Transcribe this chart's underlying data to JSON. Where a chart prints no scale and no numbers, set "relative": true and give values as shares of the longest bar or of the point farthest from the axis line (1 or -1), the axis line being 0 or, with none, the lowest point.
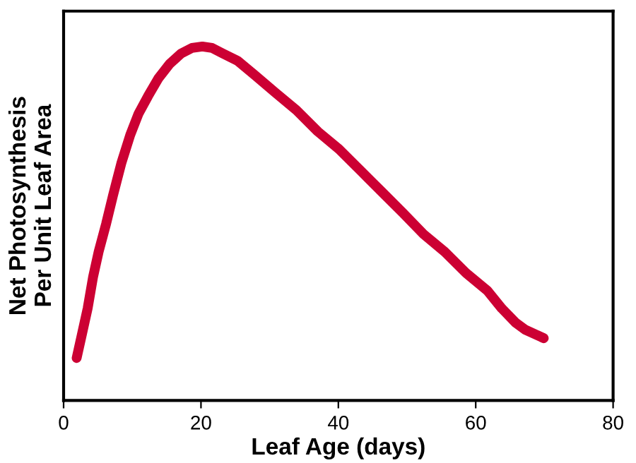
{
  "chart_data": {
    "type": "line",
    "relative": true,
    "xlabel": "Leaf Age (days)",
    "ylabel": "Net Photosynthesis\nPer Unit Leaf Area",
    "xlim": [
      0,
      80
    ],
    "xticks": [
      0,
      20,
      40,
      60,
      80
    ],
    "grid": false,
    "legend": false,
    "marker": "none",
    "line_style": "solid",
    "tick_labels": "x",
    "series": [
      {
        "color": "#cc0033",
        "x": [
          1.9,
          2.7,
          3.5,
          4.3,
          5.1,
          6.2,
          7.2,
          8.4,
          9.7,
          10.9,
          12.3,
          13.8,
          15.4,
          17.1,
          18.7,
          20.2,
          21.6,
          23.2,
          25.3,
          27.8,
          30.8,
          33.9,
          37.0,
          40.1,
          43.2,
          46.3,
          49.4,
          52.4,
          55.5,
          58.6,
          61.7,
          63.8,
          65.8,
          67.2,
          69.9
        ],
        "values": [
          0.12,
          0.19,
          0.26,
          0.35,
          0.42,
          0.5,
          0.58,
          0.67,
          0.75,
          0.81,
          0.86,
          0.91,
          0.95,
          0.98,
          0.996,
          1,
          0.996,
          0.98,
          0.96,
          0.92,
          0.87,
          0.82,
          0.76,
          0.71,
          0.65,
          0.59,
          0.53,
          0.47,
          0.42,
          0.36,
          0.31,
          0.26,
          0.22,
          0.2,
          0.176
        ]
      }
    ]
  }
}
